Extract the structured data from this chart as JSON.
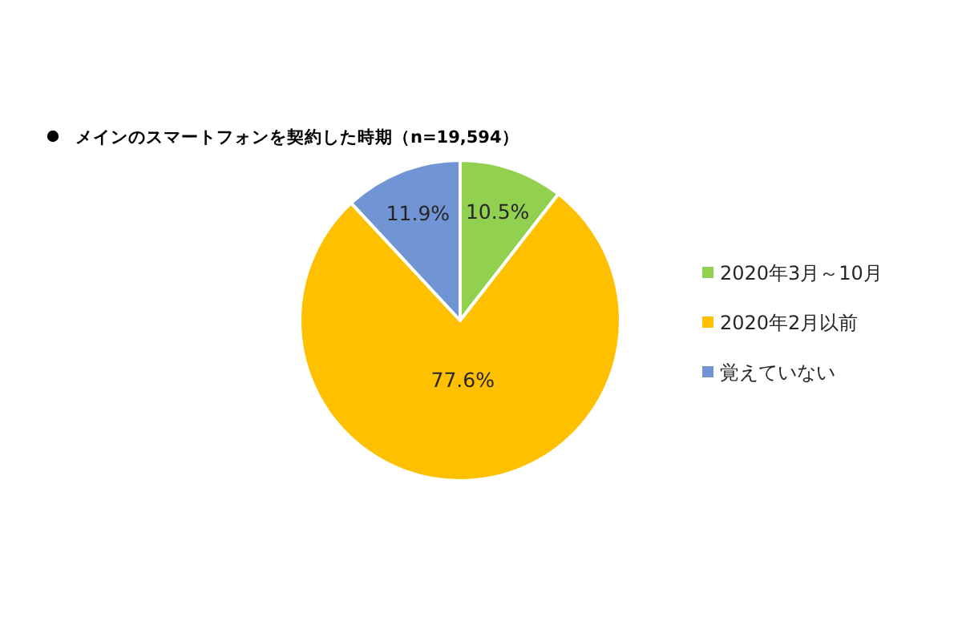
{
  "chart_data": {
    "type": "pie",
    "title": "メインのスマートフォンを契約した時期（n=19,594）",
    "categories": [
      "2020年3月～10月",
      "2020年2月以前",
      "覚えていない"
    ],
    "values": [
      10.5,
      77.6,
      11.9
    ],
    "value_labels": [
      "10.5%",
      "77.6%",
      "11.9%"
    ],
    "colors": [
      "#92d050",
      "#ffc000",
      "#7094d4"
    ],
    "legend": "right"
  }
}
